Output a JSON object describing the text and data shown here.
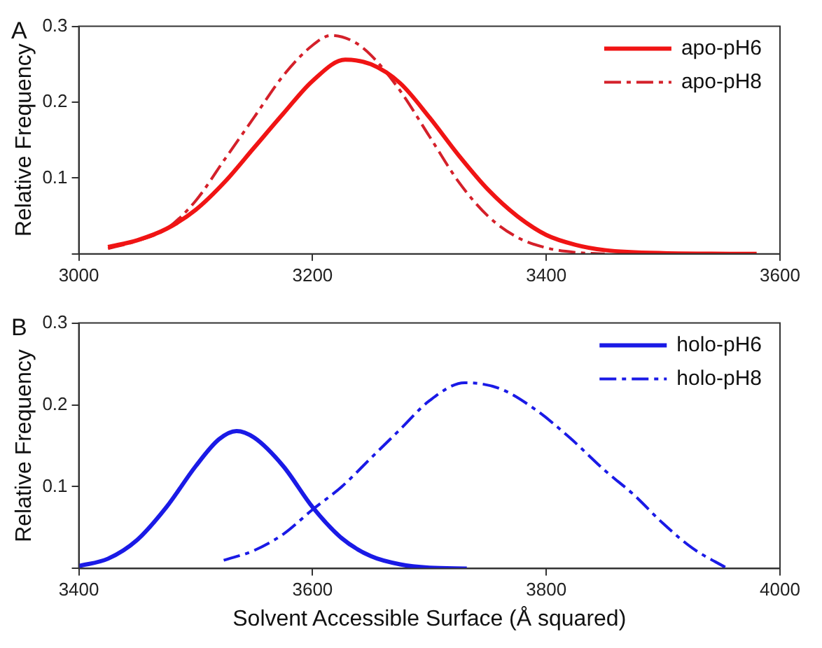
{
  "chart_data": [
    {
      "type": "line",
      "title": "A",
      "ylabel": "Relative Frequency",
      "xlim": [
        3000,
        3600
      ],
      "xticks": [
        3000,
        3200,
        3400,
        3600
      ],
      "ylim": [
        0,
        0.3
      ],
      "yticks": [
        {
          "value": 0,
          "label": null
        },
        0.1,
        0.2,
        0.3
      ],
      "grid": false,
      "legend": "top right",
      "marker": "none",
      "series": [
        {
          "name": "apo-pH6",
          "color": "#f01414",
          "line_style": "solid",
          "x": [
            3025,
            3050,
            3075,
            3100,
            3125,
            3150,
            3175,
            3200,
            3228,
            3250,
            3275,
            3300,
            3325,
            3350,
            3375,
            3400,
            3425,
            3450,
            3500,
            3580
          ],
          "values": [
            0.009,
            0.018,
            0.033,
            0.058,
            0.095,
            0.14,
            0.185,
            0.228,
            0.256,
            0.25,
            0.225,
            0.18,
            0.13,
            0.085,
            0.05,
            0.025,
            0.012,
            0.005,
            0.001,
            0
          ]
        },
        {
          "name": "apo-pH8",
          "color": "#d4202a",
          "line_style": "dashed",
          "x": [
            3025,
            3050,
            3075,
            3100,
            3125,
            3150,
            3175,
            3200,
            3216,
            3235,
            3250,
            3275,
            3300,
            3325,
            3350,
            3375,
            3400,
            3425,
            3450
          ],
          "values": [
            0.007,
            0.017,
            0.033,
            0.07,
            0.125,
            0.18,
            0.235,
            0.275,
            0.288,
            0.28,
            0.262,
            0.215,
            0.155,
            0.095,
            0.05,
            0.022,
            0.008,
            0.002,
            0
          ]
        }
      ]
    },
    {
      "type": "line",
      "title": "B",
      "xlabel": "Solvent Accessible Surface (Å squared)",
      "ylabel": "Relative Frequency",
      "xlim": [
        3400,
        4000
      ],
      "xticks": [
        3400,
        3600,
        3800,
        4000
      ],
      "ylim": [
        0,
        0.3
      ],
      "yticks": [
        {
          "value": 0,
          "label": null
        },
        0.1,
        0.2,
        0.3
      ],
      "grid": false,
      "legend": "top right",
      "marker": "none",
      "series": [
        {
          "name": "holo-pH6",
          "color": "#1a1ae6",
          "line_style": "solid",
          "x": [
            3400,
            3425,
            3450,
            3475,
            3500,
            3520,
            3535,
            3550,
            3575,
            3600,
            3625,
            3650,
            3675,
            3700,
            3732
          ],
          "values": [
            0.003,
            0.012,
            0.035,
            0.075,
            0.125,
            0.158,
            0.168,
            0.16,
            0.125,
            0.075,
            0.037,
            0.015,
            0.005,
            0.001,
            0
          ]
        },
        {
          "name": "holo-pH8",
          "color": "#1a1ae6",
          "line_style": "dashed",
          "x": [
            3524,
            3550,
            3575,
            3600,
            3625,
            3650,
            3675,
            3700,
            3730,
            3760,
            3790,
            3820,
            3850,
            3875,
            3900,
            3925,
            3955
          ],
          "values": [
            0.01,
            0.022,
            0.042,
            0.072,
            0.1,
            0.135,
            0.17,
            0.205,
            0.227,
            0.22,
            0.195,
            0.16,
            0.12,
            0.09,
            0.055,
            0.025,
            0
          ]
        }
      ]
    }
  ]
}
